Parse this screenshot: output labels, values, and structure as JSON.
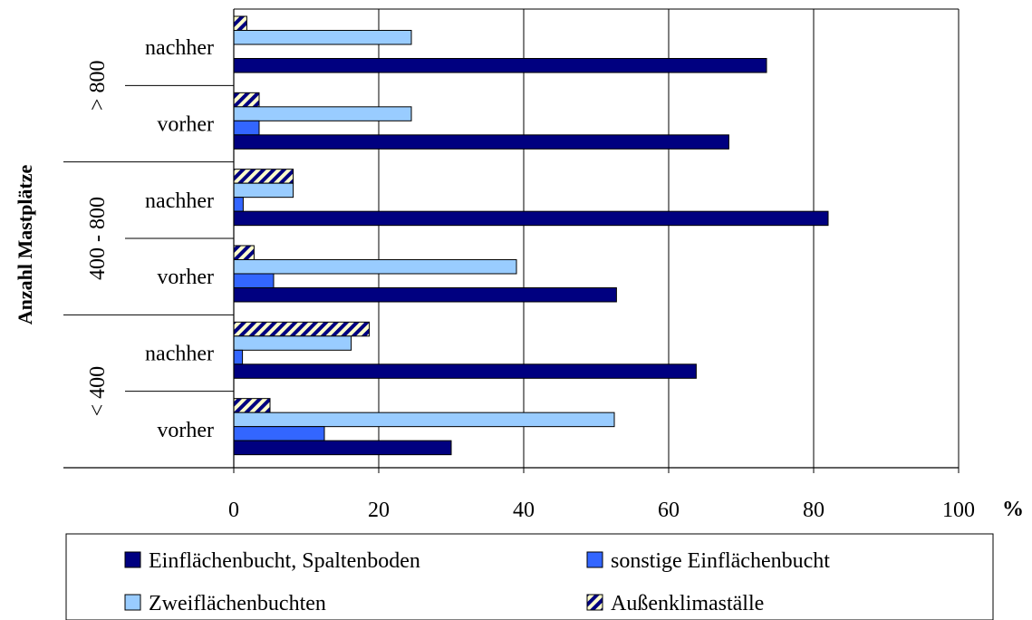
{
  "chart_data": {
    "type": "bar",
    "orientation": "horizontal",
    "xlabel": "%",
    "ylabel": "Anzahl Mastplätze",
    "xlim": [
      0,
      100
    ],
    "xticks": [
      "0",
      "20",
      "40",
      "60",
      "80",
      "100"
    ],
    "grid": "vertical",
    "legend_position": "bottom",
    "groups": [
      {
        "label": "> 800",
        "rows": [
          {
            "label": "nachher",
            "values": {
              "einflaechen_spalten": 73.5,
              "sonstige": 0,
              "zweiflaechen": 24.5,
              "aussenklima": 1.8
            }
          },
          {
            "label": "vorher",
            "values": {
              "einflaechen_spalten": 68.3,
              "sonstige": 3.5,
              "zweiflaechen": 24.5,
              "aussenklima": 3.5
            }
          }
        ]
      },
      {
        "label": "400 - 800",
        "rows": [
          {
            "label": "nachher",
            "values": {
              "einflaechen_spalten": 82,
              "sonstige": 1.3,
              "zweiflaechen": 8.2,
              "aussenklima": 8.2
            }
          },
          {
            "label": "vorher",
            "values": {
              "einflaechen_spalten": 52.8,
              "sonstige": 5.5,
              "zweiflaechen": 39,
              "aussenklima": 2.8
            }
          }
        ]
      },
      {
        "label": "< 400",
        "rows": [
          {
            "label": "nachher",
            "values": {
              "einflaechen_spalten": 63.8,
              "sonstige": 1.2,
              "zweiflaechen": 16.2,
              "aussenklima": 18.7
            }
          },
          {
            "label": "vorher",
            "values": {
              "einflaechen_spalten": 30,
              "sonstige": 12.5,
              "zweiflaechen": 52.5,
              "aussenklima": 5
            }
          }
        ]
      }
    ],
    "series": [
      {
        "key": "einflaechen_spalten",
        "name": "Einflächenbucht, Spaltenboden",
        "color": "#000080",
        "pattern": "solid"
      },
      {
        "key": "sonstige",
        "name": "sonstige Einflächenbucht",
        "color": "#3366ff",
        "pattern": "solid"
      },
      {
        "key": "zweiflaechen",
        "name": "Zweiflächenbuchten",
        "color": "#99ccff",
        "pattern": "solid"
      },
      {
        "key": "aussenklima",
        "name": "Außenklimaställe",
        "color": "#000080",
        "pattern": "diagonal-stripes",
        "pattern_color2": "#ffffcc"
      }
    ],
    "draw_order": [
      "aussenklima",
      "zweiflaechen",
      "sonstige",
      "einflaechen_spalten"
    ]
  }
}
